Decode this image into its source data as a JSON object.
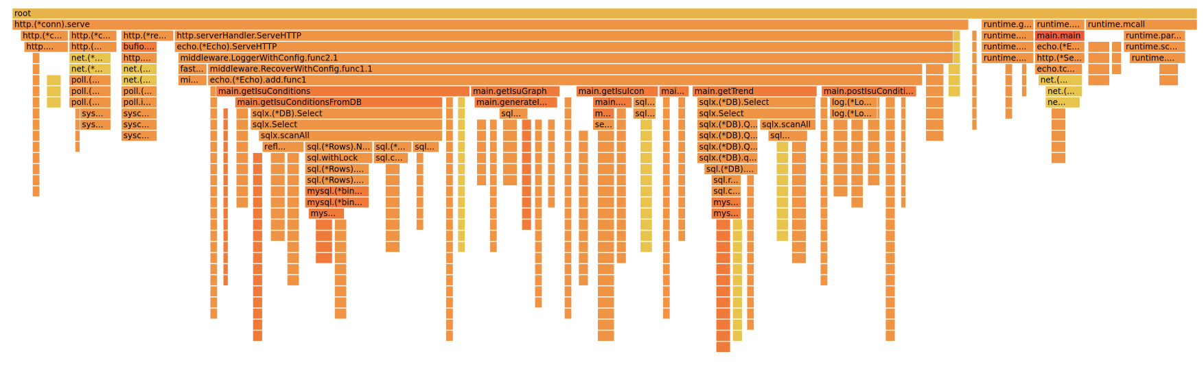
{
  "chart_data": {
    "type": "flamegraph",
    "title": "",
    "palette": {
      "yellow": "#e8c44e",
      "orange": "#ef9444",
      "dark_orange": "#f07a3a",
      "red": "#ec5a3c",
      "gold": "#e8b44a"
    },
    "frames": [
      {
        "label": "root",
        "depth": 0,
        "start": 0.0,
        "width": 1.0,
        "color": "gold"
      },
      {
        "label": "http.(*conn).serve",
        "depth": 1,
        "start": 0.0,
        "width": 0.807,
        "color": "orange"
      },
      {
        "label": "runtime.g...",
        "depth": 1,
        "start": 0.818,
        "width": 0.044,
        "color": "orange"
      },
      {
        "label": "runtime....",
        "depth": 1,
        "start": 0.863,
        "width": 0.042,
        "color": "orange"
      },
      {
        "label": "runtime.mcall",
        "depth": 1,
        "start": 0.906,
        "width": 0.094,
        "color": "orange"
      },
      {
        "label": "http.(*c...",
        "depth": 2,
        "start": 0.007,
        "width": 0.04,
        "color": "orange"
      },
      {
        "label": "http.(*c...",
        "depth": 2,
        "start": 0.048,
        "width": 0.04,
        "color": "orange"
      },
      {
        "label": "http.(*re...",
        "depth": 2,
        "start": 0.092,
        "width": 0.044,
        "color": "orange"
      },
      {
        "label": "http.serverHandler.ServeHTTP",
        "depth": 2,
        "start": 0.137,
        "width": 0.657,
        "color": "orange"
      },
      {
        "label": "runtime....",
        "depth": 2,
        "start": 0.818,
        "width": 0.044,
        "color": "orange"
      },
      {
        "label": "main.main",
        "depth": 2,
        "start": 0.863,
        "width": 0.042,
        "color": "red"
      },
      {
        "label": "runtime.par...",
        "depth": 2,
        "start": 0.938,
        "width": 0.052,
        "color": "orange"
      },
      {
        "label": "http....",
        "depth": 3,
        "start": 0.01,
        "width": 0.037,
        "color": "orange"
      },
      {
        "label": "http.(...",
        "depth": 3,
        "start": 0.048,
        "width": 0.04,
        "color": "orange"
      },
      {
        "label": "bufio....",
        "depth": 3,
        "start": 0.092,
        "width": 0.03,
        "color": "dark_orange"
      },
      {
        "label": "echo.(*Echo).ServeHTTP",
        "depth": 3,
        "start": 0.137,
        "width": 0.657,
        "color": "orange"
      },
      {
        "label": "runtime....",
        "depth": 3,
        "start": 0.818,
        "width": 0.044,
        "color": "orange"
      },
      {
        "label": "echo.(*E...",
        "depth": 3,
        "start": 0.863,
        "width": 0.042,
        "color": "orange"
      },
      {
        "label": "runtime.sc...",
        "depth": 3,
        "start": 0.938,
        "width": 0.052,
        "color": "orange"
      },
      {
        "label": "net.(*...",
        "depth": 4,
        "start": 0.048,
        "width": 0.035,
        "color": "yellow"
      },
      {
        "label": "http....",
        "depth": 4,
        "start": 0.092,
        "width": 0.03,
        "color": "orange"
      },
      {
        "label": "middleware.LoggerWithConfig.func2.1",
        "depth": 4,
        "start": 0.14,
        "width": 0.654,
        "color": "orange"
      },
      {
        "label": "runtime....",
        "depth": 4,
        "start": 0.818,
        "width": 0.044,
        "color": "orange"
      },
      {
        "label": "http.(*Se...",
        "depth": 4,
        "start": 0.863,
        "width": 0.042,
        "color": "orange"
      },
      {
        "label": "runtime....",
        "depth": 4,
        "start": 0.943,
        "width": 0.047,
        "color": "orange"
      },
      {
        "label": "net.(*...",
        "depth": 5,
        "start": 0.048,
        "width": 0.035,
        "color": "yellow"
      },
      {
        "label": "net.(...",
        "depth": 5,
        "start": 0.092,
        "width": 0.03,
        "color": "yellow"
      },
      {
        "label": "fast...",
        "depth": 5,
        "start": 0.14,
        "width": 0.024,
        "color": "orange"
      },
      {
        "label": "middleware.RecoverWithConfig.func1.1",
        "depth": 5,
        "start": 0.165,
        "width": 0.603,
        "color": "orange"
      },
      {
        "label": "echo.tc...",
        "depth": 5,
        "start": 0.863,
        "width": 0.04,
        "color": "orange"
      },
      {
        "label": "poll.(...",
        "depth": 6,
        "start": 0.048,
        "width": 0.035,
        "color": "orange"
      },
      {
        "label": "net.(...",
        "depth": 6,
        "start": 0.092,
        "width": 0.03,
        "color": "yellow"
      },
      {
        "label": "mi...",
        "depth": 6,
        "start": 0.14,
        "width": 0.024,
        "color": "orange"
      },
      {
        "label": "echo.(*Echo).add.func1",
        "depth": 6,
        "start": 0.165,
        "width": 0.603,
        "color": "orange"
      },
      {
        "label": "net.(...",
        "depth": 6,
        "start": 0.866,
        "width": 0.037,
        "color": "yellow"
      },
      {
        "label": "poll.(...",
        "depth": 7,
        "start": 0.048,
        "width": 0.035,
        "color": "orange"
      },
      {
        "label": "poll.(...",
        "depth": 7,
        "start": 0.092,
        "width": 0.03,
        "color": "orange"
      },
      {
        "label": "main.getIsuConditions",
        "depth": 7,
        "start": 0.172,
        "width": 0.214,
        "color": "dark_orange"
      },
      {
        "label": "main.getIsuGraph",
        "depth": 7,
        "start": 0.387,
        "width": 0.075,
        "color": "dark_orange"
      },
      {
        "label": "main.getIsuIcon",
        "depth": 7,
        "start": 0.476,
        "width": 0.069,
        "color": "dark_orange"
      },
      {
        "label": "mai...",
        "depth": 7,
        "start": 0.546,
        "width": 0.025,
        "color": "dark_orange"
      },
      {
        "label": "main.getTrend",
        "depth": 7,
        "start": 0.574,
        "width": 0.105,
        "color": "dark_orange"
      },
      {
        "label": "main.postIsuConditi...",
        "depth": 7,
        "start": 0.683,
        "width": 0.08,
        "color": "dark_orange"
      },
      {
        "label": "net.(...",
        "depth": 7,
        "start": 0.872,
        "width": 0.031,
        "color": "yellow"
      },
      {
        "label": "poll.(...",
        "depth": 8,
        "start": 0.048,
        "width": 0.035,
        "color": "orange"
      },
      {
        "label": "poll.i...",
        "depth": 8,
        "start": 0.092,
        "width": 0.03,
        "color": "orange"
      },
      {
        "label": "main.getIsuConditionsFromDB",
        "depth": 8,
        "start": 0.188,
        "width": 0.175,
        "color": "dark_orange"
      },
      {
        "label": "main.generateI...",
        "depth": 8,
        "start": 0.39,
        "width": 0.07,
        "color": "dark_orange"
      },
      {
        "label": "main....",
        "depth": 8,
        "start": 0.49,
        "width": 0.033,
        "color": "dark_orange"
      },
      {
        "label": "sql...",
        "depth": 8,
        "start": 0.524,
        "width": 0.019,
        "color": "orange"
      },
      {
        "label": "sqlx.(*DB).Select",
        "depth": 8,
        "start": 0.578,
        "width": 0.1,
        "color": "orange"
      },
      {
        "label": "log.(*Lo...",
        "depth": 8,
        "start": 0.69,
        "width": 0.04,
        "color": "orange"
      },
      {
        "label": "ne...",
        "depth": 8,
        "start": 0.872,
        "width": 0.029,
        "color": "yellow"
      },
      {
        "label": "sys...",
        "depth": 9,
        "start": 0.057,
        "width": 0.026,
        "color": "orange"
      },
      {
        "label": "sysc...",
        "depth": 9,
        "start": 0.092,
        "width": 0.03,
        "color": "orange"
      },
      {
        "label": "sqlx.(*DB).Select",
        "depth": 9,
        "start": 0.201,
        "width": 0.162,
        "color": "orange"
      },
      {
        "label": "sql...",
        "depth": 9,
        "start": 0.411,
        "width": 0.024,
        "color": "orange"
      },
      {
        "label": "m...",
        "depth": 9,
        "start": 0.49,
        "width": 0.018,
        "color": "dark_orange"
      },
      {
        "label": "sql...",
        "depth": 9,
        "start": 0.524,
        "width": 0.019,
        "color": "orange"
      },
      {
        "label": "sqlx.Select",
        "depth": 9,
        "start": 0.578,
        "width": 0.1,
        "color": "orange"
      },
      {
        "label": "log.(*Lo...",
        "depth": 9,
        "start": 0.69,
        "width": 0.04,
        "color": "orange"
      },
      {
        "label": "sys...",
        "depth": 10,
        "start": 0.057,
        "width": 0.026,
        "color": "orange"
      },
      {
        "label": "sysc...",
        "depth": 10,
        "start": 0.092,
        "width": 0.03,
        "color": "orange"
      },
      {
        "label": "sqlx.Select",
        "depth": 10,
        "start": 0.201,
        "width": 0.162,
        "color": "orange"
      },
      {
        "label": "se...",
        "depth": 10,
        "start": 0.49,
        "width": 0.018,
        "color": "orange"
      },
      {
        "label": "sqlx.(*DB).Q...",
        "depth": 10,
        "start": 0.578,
        "width": 0.051,
        "color": "orange"
      },
      {
        "label": "sqlx.scanAll",
        "depth": 10,
        "start": 0.631,
        "width": 0.047,
        "color": "orange"
      },
      {
        "label": "sysc...",
        "depth": 11,
        "start": 0.092,
        "width": 0.03,
        "color": "orange"
      },
      {
        "label": "sqlx.scanAll",
        "depth": 11,
        "start": 0.208,
        "width": 0.155,
        "color": "orange"
      },
      {
        "label": "sqlx.(*DB).Q...",
        "depth": 11,
        "start": 0.578,
        "width": 0.051,
        "color": "orange"
      },
      {
        "label": "sql...",
        "depth": 11,
        "start": 0.638,
        "width": 0.033,
        "color": "orange"
      },
      {
        "label": "refl...",
        "depth": 12,
        "start": 0.211,
        "width": 0.035,
        "color": "orange"
      },
      {
        "label": "sql.(*Rows).N...",
        "depth": 12,
        "start": 0.247,
        "width": 0.057,
        "color": "orange"
      },
      {
        "label": "sql.(*...",
        "depth": 12,
        "start": 0.305,
        "width": 0.032,
        "color": "orange"
      },
      {
        "label": "sql...",
        "depth": 12,
        "start": 0.338,
        "width": 0.022,
        "color": "orange"
      },
      {
        "label": "sqlx.(*DB).Q...",
        "depth": 12,
        "start": 0.578,
        "width": 0.051,
        "color": "orange"
      },
      {
        "label": "sql.withLock",
        "depth": 13,
        "start": 0.247,
        "width": 0.057,
        "color": "orange"
      },
      {
        "label": "sql.c...",
        "depth": 13,
        "start": 0.305,
        "width": 0.029,
        "color": "orange"
      },
      {
        "label": "sqlx.(*DB).q...",
        "depth": 13,
        "start": 0.578,
        "width": 0.051,
        "color": "orange"
      },
      {
        "label": "sql.(*Rows)....",
        "depth": 14,
        "start": 0.247,
        "width": 0.054,
        "color": "orange"
      },
      {
        "label": "sql.(*DB)....",
        "depth": 14,
        "start": 0.584,
        "width": 0.045,
        "color": "orange"
      },
      {
        "label": "sql.(*Rows)....",
        "depth": 15,
        "start": 0.247,
        "width": 0.054,
        "color": "orange"
      },
      {
        "label": "sql.r...",
        "depth": 15,
        "start": 0.59,
        "width": 0.025,
        "color": "orange"
      },
      {
        "label": "mysql.(*bin...",
        "depth": 16,
        "start": 0.247,
        "width": 0.054,
        "color": "dark_orange"
      },
      {
        "label": "sql.c...",
        "depth": 16,
        "start": 0.59,
        "width": 0.025,
        "color": "orange"
      },
      {
        "label": "mysql.(*bin...",
        "depth": 17,
        "start": 0.247,
        "width": 0.054,
        "color": "dark_orange"
      },
      {
        "label": "mys...",
        "depth": 17,
        "start": 0.59,
        "width": 0.025,
        "color": "dark_orange"
      },
      {
        "label": "mys...",
        "depth": 18,
        "start": 0.25,
        "width": 0.03,
        "color": "dark_orange"
      },
      {
        "label": "mys...",
        "depth": 18,
        "start": 0.59,
        "width": 0.025,
        "color": "dark_orange"
      }
    ],
    "thin_columns": [
      {
        "start": 0.017,
        "width": 0.006,
        "depth_from": 3,
        "depth_to": 16,
        "color": "orange"
      },
      {
        "start": 0.029,
        "width": 0.012,
        "depth_from": 6,
        "depth_to": 8,
        "color": "yellow"
      },
      {
        "start": 0.053,
        "width": 0.004,
        "depth_from": 9,
        "depth_to": 12,
        "color": "orange"
      },
      {
        "start": 0.167,
        "width": 0.006,
        "depth_from": 7,
        "depth_to": 27,
        "color": "orange"
      },
      {
        "start": 0.178,
        "width": 0.004,
        "depth_from": 9,
        "depth_to": 24,
        "color": "dark_orange"
      },
      {
        "start": 0.189,
        "width": 0.01,
        "depth_from": 9,
        "depth_to": 17,
        "color": "orange"
      },
      {
        "start": 0.203,
        "width": 0.008,
        "depth_from": 13,
        "depth_to": 29,
        "color": "dark_orange"
      },
      {
        "start": 0.218,
        "width": 0.012,
        "depth_from": 13,
        "depth_to": 20,
        "color": "orange"
      },
      {
        "start": 0.232,
        "width": 0.01,
        "depth_from": 13,
        "depth_to": 24,
        "color": "orange"
      },
      {
        "start": 0.256,
        "width": 0.014,
        "depth_from": 19,
        "depth_to": 22,
        "color": "dark_orange"
      },
      {
        "start": 0.272,
        "width": 0.01,
        "depth_from": 19,
        "depth_to": 27,
        "color": "orange"
      },
      {
        "start": 0.315,
        "width": 0.012,
        "depth_from": 14,
        "depth_to": 21,
        "color": "orange"
      },
      {
        "start": 0.341,
        "width": 0.006,
        "depth_from": 13,
        "depth_to": 19,
        "color": "orange"
      },
      {
        "start": 0.366,
        "width": 0.006,
        "depth_from": 8,
        "depth_to": 29,
        "color": "orange"
      },
      {
        "start": 0.376,
        "width": 0.006,
        "depth_from": 8,
        "depth_to": 21,
        "color": "yellow"
      },
      {
        "start": 0.392,
        "width": 0.008,
        "depth_from": 10,
        "depth_to": 15,
        "color": "orange"
      },
      {
        "start": 0.403,
        "width": 0.006,
        "depth_from": 10,
        "depth_to": 21,
        "color": "orange"
      },
      {
        "start": 0.414,
        "width": 0.012,
        "depth_from": 10,
        "depth_to": 15,
        "color": "orange"
      },
      {
        "start": 0.43,
        "width": 0.008,
        "depth_from": 10,
        "depth_to": 19,
        "color": "dark_orange"
      },
      {
        "start": 0.441,
        "width": 0.006,
        "depth_from": 10,
        "depth_to": 26,
        "color": "orange"
      },
      {
        "start": 0.452,
        "width": 0.006,
        "depth_from": 10,
        "depth_to": 17,
        "color": "orange"
      },
      {
        "start": 0.466,
        "width": 0.006,
        "depth_from": 8,
        "depth_to": 27,
        "color": "orange"
      },
      {
        "start": 0.478,
        "width": 0.008,
        "depth_from": 11,
        "depth_to": 24,
        "color": "orange"
      },
      {
        "start": 0.494,
        "width": 0.014,
        "depth_from": 11,
        "depth_to": 29,
        "color": "orange"
      },
      {
        "start": 0.51,
        "width": 0.008,
        "depth_from": 9,
        "depth_to": 22,
        "color": "orange"
      },
      {
        "start": 0.53,
        "width": 0.01,
        "depth_from": 10,
        "depth_to": 21,
        "color": "yellow"
      },
      {
        "start": 0.549,
        "width": 0.006,
        "depth_from": 8,
        "depth_to": 27,
        "color": "orange"
      },
      {
        "start": 0.562,
        "width": 0.006,
        "depth_from": 8,
        "depth_to": 20,
        "color": "orange"
      },
      {
        "start": 0.594,
        "width": 0.012,
        "depth_from": 19,
        "depth_to": 30,
        "color": "dark_orange"
      },
      {
        "start": 0.608,
        "width": 0.008,
        "depth_from": 19,
        "depth_to": 29,
        "color": "yellow"
      },
      {
        "start": 0.62,
        "width": 0.006,
        "depth_from": 13,
        "depth_to": 28,
        "color": "orange"
      },
      {
        "start": 0.645,
        "width": 0.01,
        "depth_from": 12,
        "depth_to": 20,
        "color": "yellow"
      },
      {
        "start": 0.658,
        "width": 0.012,
        "depth_from": 12,
        "depth_to": 22,
        "color": "orange"
      },
      {
        "start": 0.682,
        "width": 0.006,
        "depth_from": 8,
        "depth_to": 24,
        "color": "orange"
      },
      {
        "start": 0.693,
        "width": 0.012,
        "depth_from": 10,
        "depth_to": 16,
        "color": "orange"
      },
      {
        "start": 0.708,
        "width": 0.01,
        "depth_from": 10,
        "depth_to": 17,
        "color": "orange"
      },
      {
        "start": 0.722,
        "width": 0.01,
        "depth_from": 8,
        "depth_to": 15,
        "color": "orange"
      },
      {
        "start": 0.737,
        "width": 0.008,
        "depth_from": 8,
        "depth_to": 29,
        "color": "orange"
      },
      {
        "start": 0.75,
        "width": 0.004,
        "depth_from": 8,
        "depth_to": 17,
        "color": "orange"
      },
      {
        "start": 0.771,
        "width": 0.015,
        "depth_from": 5,
        "depth_to": 11,
        "color": "orange"
      },
      {
        "start": 0.79,
        "width": 0.01,
        "depth_from": 2,
        "depth_to": 7,
        "color": "yellow"
      },
      {
        "start": 0.81,
        "width": 0.004,
        "depth_from": 2,
        "depth_to": 10,
        "color": "orange"
      },
      {
        "start": 0.838,
        "width": 0.006,
        "depth_from": 5,
        "depth_to": 9,
        "color": "orange"
      },
      {
        "start": 0.852,
        "width": 0.004,
        "depth_from": 5,
        "depth_to": 7,
        "color": "orange"
      },
      {
        "start": 0.877,
        "width": 0.012,
        "depth_from": 9,
        "depth_to": 13,
        "color": "orange"
      },
      {
        "start": 0.908,
        "width": 0.018,
        "depth_from": 3,
        "depth_to": 6,
        "color": "orange"
      },
      {
        "start": 0.928,
        "width": 0.008,
        "depth_from": 3,
        "depth_to": 5,
        "color": "orange"
      },
      {
        "start": 0.968,
        "width": 0.016,
        "depth_from": 5,
        "depth_to": 6,
        "color": "orange"
      }
    ]
  }
}
